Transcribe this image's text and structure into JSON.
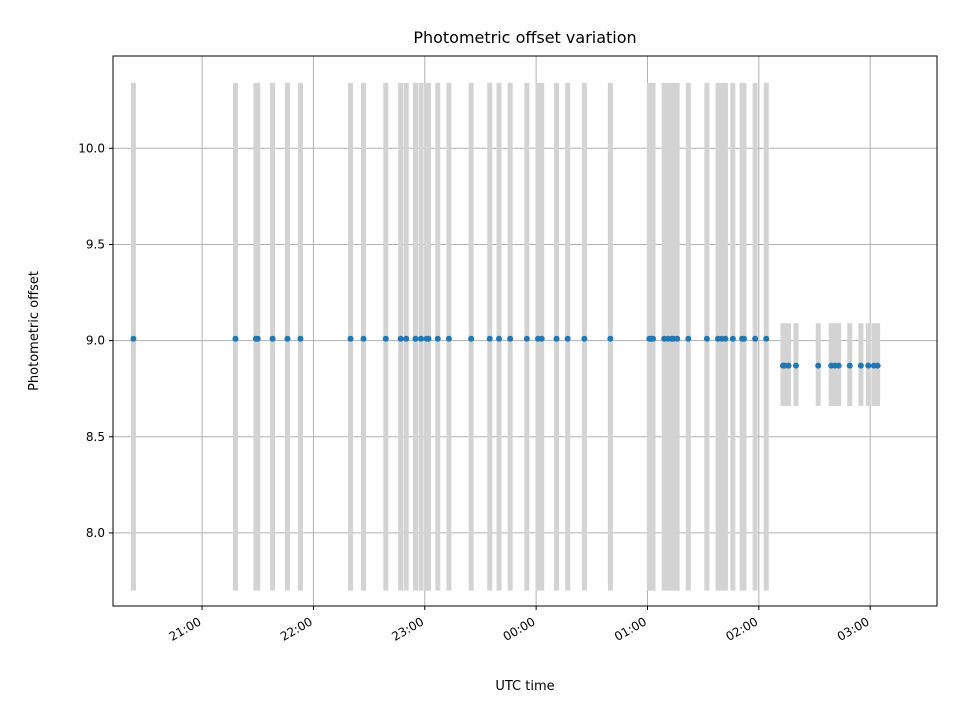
{
  "chart_data": {
    "type": "scatter",
    "title": "Photometric offset variation",
    "xlabel": "UTC time",
    "ylabel": "Photometric offset",
    "x_is_time": true,
    "xlim": [
      "20:12",
      "03:36"
    ],
    "ylim": [
      7.62,
      10.48
    ],
    "grid": true,
    "x_ticks": [
      "21:00",
      "22:00",
      "23:00",
      "00:00",
      "01:00",
      "02:00",
      "03:00"
    ],
    "y_ticks": [
      "8.0",
      "8.5",
      "9.0",
      "9.5",
      "10.0"
    ],
    "errorbar_color": "#d3d3d3",
    "marker_color": "#1f77b4",
    "series": [
      {
        "x": [
          "20:23",
          "21:18",
          "21:29",
          "21:30",
          "21:38",
          "21:46",
          "21:53",
          "22:20",
          "22:27",
          "22:39",
          "22:47",
          "22:50",
          "22:55",
          "22:58",
          "23:01",
          "23:02",
          "23:07",
          "23:13",
          "23:25",
          "23:35",
          "23:40",
          "23:46",
          "23:55",
          "00:01",
          "00:03",
          "00:11",
          "00:17",
          "00:26",
          "00:40",
          "01:01",
          "01:02",
          "01:03",
          "01:09",
          "01:11",
          "01:13",
          "01:14",
          "01:16",
          "01:22",
          "01:32",
          "01:38",
          "01:40",
          "01:42",
          "01:46",
          "01:51",
          "01:52",
          "01:58",
          "02:04",
          "02:13",
          "02:14",
          "02:16",
          "02:20",
          "02:32",
          "02:39",
          "02:41",
          "02:43",
          "02:49",
          "02:55",
          "02:59",
          "03:02",
          "03:04"
        ],
        "y": [
          9.01,
          9.01,
          9.01,
          9.01,
          9.01,
          9.01,
          9.01,
          9.01,
          9.01,
          9.01,
          9.01,
          9.01,
          9.01,
          9.01,
          9.01,
          9.01,
          9.01,
          9.01,
          9.01,
          9.01,
          9.01,
          9.01,
          9.01,
          9.01,
          9.01,
          9.01,
          9.01,
          9.01,
          9.01,
          9.01,
          9.01,
          9.01,
          9.01,
          9.01,
          9.01,
          9.01,
          9.01,
          9.01,
          9.01,
          9.01,
          9.01,
          9.01,
          9.01,
          9.01,
          9.01,
          9.01,
          9.01,
          8.87,
          8.87,
          8.87,
          8.87,
          8.87,
          8.87,
          8.87,
          8.87,
          8.87,
          8.87,
          8.87,
          8.87,
          8.87
        ],
        "y_low": [
          7.7,
          7.7,
          7.7,
          7.7,
          7.7,
          7.7,
          7.7,
          7.7,
          7.7,
          7.7,
          7.7,
          7.7,
          7.7,
          7.7,
          7.7,
          7.7,
          7.7,
          7.7,
          7.7,
          7.7,
          7.7,
          7.7,
          7.7,
          7.7,
          7.7,
          7.7,
          7.7,
          7.7,
          7.7,
          7.7,
          7.7,
          7.7,
          7.7,
          7.7,
          7.7,
          7.7,
          7.7,
          7.7,
          7.7,
          7.7,
          7.7,
          7.7,
          7.7,
          7.7,
          7.7,
          7.7,
          7.7,
          8.66,
          8.66,
          8.66,
          8.66,
          8.66,
          8.66,
          8.66,
          8.66,
          8.66,
          8.66,
          8.66,
          8.66,
          8.66
        ],
        "y_high": [
          10.34,
          10.34,
          10.34,
          10.34,
          10.34,
          10.34,
          10.34,
          10.34,
          10.34,
          10.34,
          10.34,
          10.34,
          10.34,
          10.34,
          10.34,
          10.34,
          10.34,
          10.34,
          10.34,
          10.34,
          10.34,
          10.34,
          10.34,
          10.34,
          10.34,
          10.34,
          10.34,
          10.34,
          10.34,
          10.34,
          10.34,
          10.34,
          10.34,
          10.34,
          10.34,
          10.34,
          10.34,
          10.34,
          10.34,
          10.34,
          10.34,
          10.34,
          10.34,
          10.34,
          10.34,
          10.34,
          10.34,
          9.09,
          9.09,
          9.09,
          9.09,
          9.09,
          9.09,
          9.09,
          9.09,
          9.09,
          9.09,
          9.09,
          9.09,
          9.09
        ]
      }
    ]
  }
}
